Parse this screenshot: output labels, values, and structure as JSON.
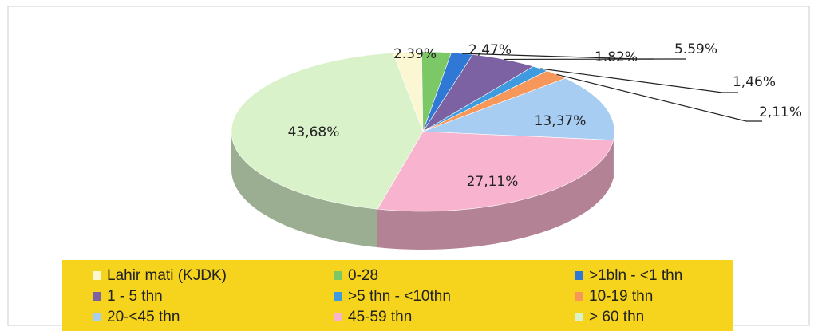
{
  "chart_data": {
    "type": "pie",
    "categories": [
      "Lahir mati (KJDK)",
      "0-28",
      ">1bln - <1 thn",
      "1 - 5 thn",
      ">5 thn - <10thn",
      "10-19 thn",
      "20-<45 thn",
      "45-59 thn",
      "> 60 thn"
    ],
    "values": [
      2.39,
      2.47,
      1.82,
      5.59,
      1.46,
      2.11,
      13.37,
      27.11,
      43.68
    ],
    "value_labels": [
      "2.39%",
      "2,47%",
      "1.82%",
      "5.59%",
      "1,46%",
      "2,11%",
      "13,37%",
      "27,11%",
      "43,68%"
    ],
    "colors": [
      "#fbf7d2",
      "#7cc766",
      "#2f78d6",
      "#7d62a3",
      "#3f9be0",
      "#f7975a",
      "#a8cdf2",
      "#f8b4cf",
      "#d9f2c9"
    ],
    "legend": "bottom"
  }
}
